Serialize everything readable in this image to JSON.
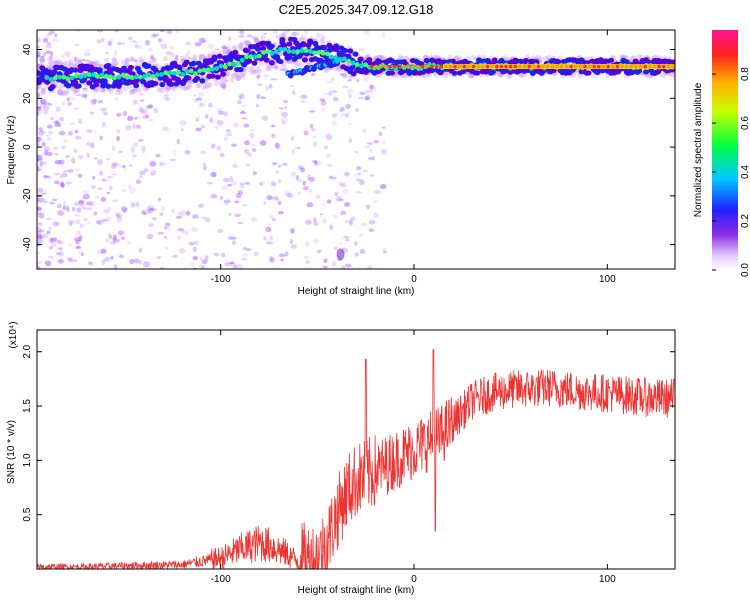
{
  "title": "C2E5.2025.347.09.12.G18",
  "chart_data": [
    {
      "type": "heatmap",
      "xlabel": "Height of straight line (km)",
      "ylabel": "Frequency (Hz)",
      "xlim": [
        -195,
        135
      ],
      "ylim": [
        -50,
        48
      ],
      "x_ticks": [
        -100,
        0,
        100
      ],
      "y_ticks": [
        -40,
        -20,
        0,
        20,
        40
      ],
      "colorbar": {
        "label": "Normalized spectral amplitude",
        "range": [
          0.0,
          0.98
        ],
        "ticks": [
          0.0,
          0.2,
          0.4,
          0.6,
          0.8
        ]
      },
      "ridge": [
        [
          -195,
          28
        ],
        [
          -170,
          29
        ],
        [
          -150,
          29
        ],
        [
          -130,
          30
        ],
        [
          -110,
          31
        ],
        [
          -95,
          34
        ],
        [
          -80,
          38
        ],
        [
          -65,
          40
        ],
        [
          -50,
          39
        ],
        [
          -40,
          37
        ],
        [
          -30,
          34
        ],
        [
          -20,
          33
        ],
        [
          0,
          33
        ],
        [
          20,
          33
        ],
        [
          60,
          33
        ],
        [
          100,
          33
        ],
        [
          135,
          33
        ]
      ],
      "secondary_ridge": [
        [
          -65,
          30
        ],
        [
          -50,
          33
        ],
        [
          -40,
          35
        ],
        [
          -35,
          37
        ]
      ]
    },
    {
      "type": "line",
      "xlabel": "Height of straight line (km)",
      "ylabel": "SNR (10 * v/v)",
      "y_scale_label": "(x10⁴)",
      "xlim": [
        -195,
        135
      ],
      "ylim": [
        0,
        2.2
      ],
      "x_ticks": [
        -100,
        0,
        100
      ],
      "y_ticks": [
        0.5,
        1.0,
        1.5,
        2.0
      ],
      "color": "#ee3333",
      "series": [
        {
          "x": [
            -195,
            -170,
            -150,
            -120,
            -100,
            -90,
            -80,
            -75,
            -70,
            -60,
            -50,
            -45,
            -40,
            -35,
            -30,
            -25,
            -20,
            -15,
            -10,
            -5,
            0,
            5,
            10,
            15,
            20,
            25,
            30,
            40,
            50,
            60,
            70,
            80,
            90,
            100,
            110,
            120,
            130,
            135
          ],
          "values": [
            0.02,
            0.02,
            0.03,
            0.04,
            0.1,
            0.18,
            0.24,
            0.22,
            0.18,
            0.08,
            0.1,
            0.25,
            0.5,
            0.7,
            0.82,
            0.85,
            0.9,
            0.95,
            1.0,
            1.05,
            1.1,
            1.15,
            1.2,
            1.25,
            1.35,
            1.45,
            1.55,
            1.62,
            1.65,
            1.66,
            1.67,
            1.65,
            1.63,
            1.62,
            1.6,
            1.58,
            1.57,
            1.58
          ]
        }
      ]
    }
  ]
}
